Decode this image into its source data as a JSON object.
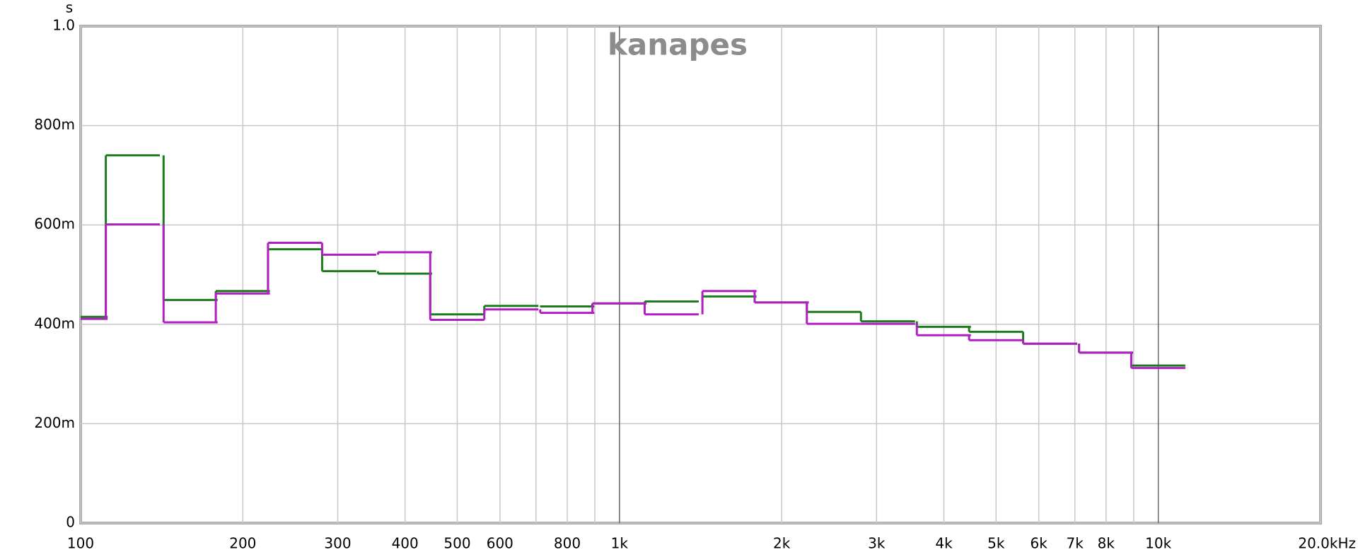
{
  "chart_data": {
    "type": "step",
    "title": "kanapes",
    "y_unit": "s",
    "xscale": "log",
    "band_width_octaves": 0.3333333333,
    "x": [
      100,
      125,
      160,
      200,
      250,
      315,
      400,
      500,
      630,
      800,
      1000,
      1250,
      1600,
      2000,
      2500,
      3150,
      4000,
      5000,
      6300,
      8000,
      10000
    ],
    "series": [
      {
        "color": "#1c7c1c",
        "values": [
          0.415,
          0.74,
          0.449,
          0.467,
          0.551,
          0.507,
          0.502,
          0.42,
          0.437,
          0.436,
          0.442,
          0.446,
          0.456,
          0.444,
          0.425,
          0.406,
          0.395,
          0.385,
          0.361,
          0.343,
          0.317
        ]
      },
      {
        "color": "#b11fc2",
        "values": [
          0.411,
          0.601,
          0.404,
          0.462,
          0.564,
          0.54,
          0.545,
          0.409,
          0.43,
          0.423,
          0.442,
          0.42,
          0.467,
          0.444,
          0.401,
          0.401,
          0.378,
          0.368,
          0.361,
          0.343,
          0.312
        ]
      }
    ],
    "xlim": [
      100,
      20000
    ],
    "xticks": [
      100,
      200,
      300,
      400,
      500,
      600,
      800,
      {
        "value": 1000,
        "label": "1k"
      },
      {
        "value": 2000,
        "label": "2k"
      },
      {
        "value": 3000,
        "label": "3k"
      },
      {
        "value": 4000,
        "label": "4k"
      },
      {
        "value": 5000,
        "label": "5k"
      },
      {
        "value": 6000,
        "label": "6k"
      },
      {
        "value": 7000,
        "label": "7k"
      },
      {
        "value": 8000,
        "label": "8k"
      },
      {
        "value": 10000,
        "label": "10k"
      },
      {
        "value": 20000,
        "label": "20.0kHz"
      }
    ],
    "minor_xticks": [
      700,
      900,
      9000
    ],
    "ylim": [
      0,
      1
    ],
    "yticks": [
      0,
      {
        "value": 0.2,
        "label": "200m"
      },
      {
        "value": 0.4,
        "label": "400m"
      },
      {
        "value": 0.6,
        "label": "600m"
      },
      {
        "value": 0.8,
        "label": "800m"
      },
      {
        "value": 1,
        "label": "1.0"
      }
    ],
    "grid": true
  }
}
